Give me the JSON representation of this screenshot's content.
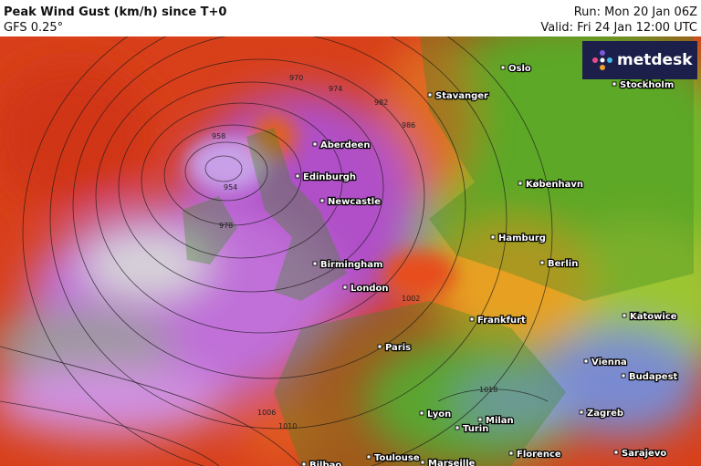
{
  "header": {
    "title": "Peak Wind Gust (km/h) since T+0",
    "model": "GFS 0.25°",
    "run": "Run: Mon 20 Jan 06Z",
    "valid": "Valid: Fri 24 Jan 12:00 UTC"
  },
  "logo": "metdesk",
  "cities": [
    "Oslo",
    "Stavanger",
    "Stockholm",
    "Aberdeen",
    "Edinburgh",
    "Newcastle",
    "København",
    "Hamburg",
    "Birmingham",
    "Berlin",
    "London",
    "Frankfurt",
    "Katowice",
    "Paris",
    "Vienna",
    "Budapest",
    "Lyon",
    "Milan",
    "Zagreb",
    "Turin",
    "Toulouse",
    "Marseille",
    "Florence",
    "Sarajevo",
    "Bilbao"
  ],
  "isobar_labels": [
    "970",
    "974",
    "982",
    "986",
    "958",
    "954",
    "978",
    "1002",
    "1006",
    "1010",
    "1018"
  ]
}
